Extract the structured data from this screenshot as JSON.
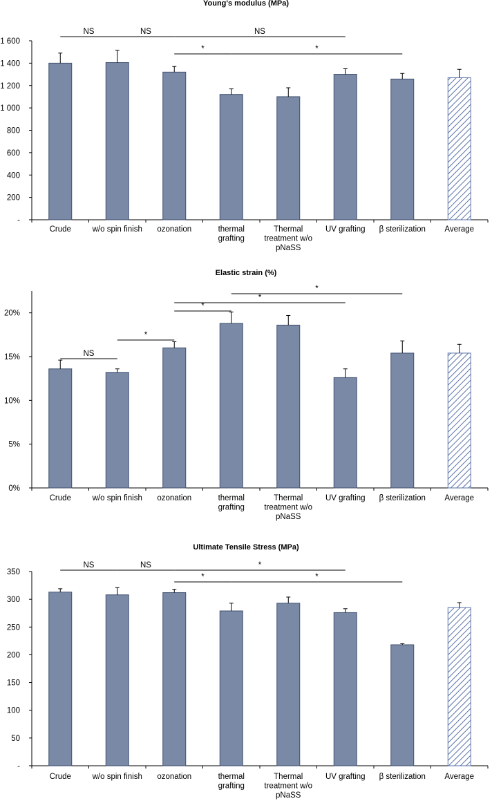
{
  "colors": {
    "bar": "#7a8aa6",
    "bar_edge": "#3f4f6e",
    "axis": "#000000",
    "hatch": "#5a72a8",
    "line": "#000000"
  },
  "chart_data": [
    {
      "type": "bar",
      "title": "Young's modulus (MPa)",
      "categories": [
        [
          "Crude"
        ],
        [
          "w/o spin finish"
        ],
        [
          "ozonation"
        ],
        [
          "thermal",
          "grafting"
        ],
        [
          "Thermal",
          "treatment w/o",
          "pNaSS"
        ],
        [
          "UV grafting"
        ],
        [
          "β sterilization"
        ],
        [
          "Average"
        ]
      ],
      "values": [
        1400,
        1405,
        1320,
        1120,
        1100,
        1300,
        1258,
        1270
      ],
      "errors": [
        90,
        110,
        50,
        50,
        80,
        50,
        50,
        75
      ],
      "hatched": [
        false,
        false,
        false,
        false,
        false,
        false,
        false,
        true
      ],
      "ylim": [
        0,
        1600
      ],
      "yticks": [
        0,
        200,
        400,
        600,
        800,
        1000,
        1200,
        1400,
        1600
      ],
      "ytick_labels": [
        "-",
        "200",
        "400",
        "600",
        "800",
        "1 000",
        "1 200",
        "1 400",
        "1 600"
      ],
      "annotations": [
        {
          "from": 0,
          "to": 1,
          "label": "NS",
          "level": 0
        },
        {
          "from": 1,
          "to": 2,
          "label": "NS",
          "level": 0
        },
        {
          "from": 2,
          "to": 5,
          "label": "NS",
          "level": 0
        },
        {
          "from": 2,
          "to": 3,
          "label": "*",
          "level": 1
        },
        {
          "from": 3,
          "to": 6,
          "label": "*",
          "level": 1
        }
      ]
    },
    {
      "type": "bar",
      "title": "Elastic strain (%)",
      "categories": [
        [
          "Crude"
        ],
        [
          "w/o spin finish"
        ],
        [
          "ozonation"
        ],
        [
          "thermal",
          "grafting"
        ],
        [
          "Thermal",
          "treatment w/o",
          "pNaSS"
        ],
        [
          "UV grafting"
        ],
        [
          "β sterilization"
        ],
        [
          "Average"
        ]
      ],
      "values": [
        13.6,
        13.2,
        16.0,
        18.8,
        18.6,
        12.6,
        15.4,
        15.4
      ],
      "errors": [
        1.0,
        0.4,
        0.7,
        1.3,
        1.1,
        1.0,
        1.4,
        1.0
      ],
      "hatched": [
        false,
        false,
        false,
        false,
        false,
        false,
        false,
        true
      ],
      "ylim": [
        0,
        22.5
      ],
      "yticks": [
        0,
        5,
        10,
        15,
        20
      ],
      "ytick_labels": [
        "0%",
        "5%",
        "10%",
        "15%",
        "20%"
      ],
      "annotations": [
        {
          "from": 0,
          "to": 1,
          "label": "NS",
          "level": 0
        },
        {
          "from": 1,
          "to": 2,
          "label": "*",
          "level": 1
        },
        {
          "from": 2,
          "to": 3,
          "label": "*",
          "level": 2
        },
        {
          "from": 2,
          "to": 5,
          "label": "*",
          "level": 3
        },
        {
          "from": 3,
          "to": 6,
          "label": "*",
          "level": 4
        }
      ]
    },
    {
      "type": "bar",
      "title": "Ultimate Tensile Stress (MPa)",
      "categories": [
        [
          "Crude"
        ],
        [
          "w/o spin finish"
        ],
        [
          "ozonation"
        ],
        [
          "thermal",
          "grafting"
        ],
        [
          "Thermal",
          "treatment w/o",
          "pNaSS"
        ],
        [
          "UV grafting"
        ],
        [
          "β sterilization"
        ],
        [
          "Average"
        ]
      ],
      "values": [
        313,
        308,
        312,
        279,
        293,
        276,
        218,
        285
      ],
      "errors": [
        6,
        13,
        6,
        14,
        11,
        7,
        2,
        9
      ],
      "hatched": [
        false,
        false,
        false,
        false,
        false,
        false,
        false,
        true
      ],
      "ylim": [
        0,
        350
      ],
      "yticks": [
        0,
        50,
        100,
        150,
        200,
        250,
        300,
        350
      ],
      "ytick_labels": [
        "-",
        "50",
        "100",
        "150",
        "200",
        "250",
        "300",
        "350"
      ],
      "annotations": [
        {
          "from": 0,
          "to": 1,
          "label": "NS",
          "level": 0
        },
        {
          "from": 1,
          "to": 2,
          "label": "NS",
          "level": 0
        },
        {
          "from": 2,
          "to": 5,
          "label": "*",
          "level": 0
        },
        {
          "from": 2,
          "to": 3,
          "label": "*",
          "level": 1
        },
        {
          "from": 3,
          "to": 6,
          "label": "*",
          "level": 1
        }
      ]
    }
  ]
}
